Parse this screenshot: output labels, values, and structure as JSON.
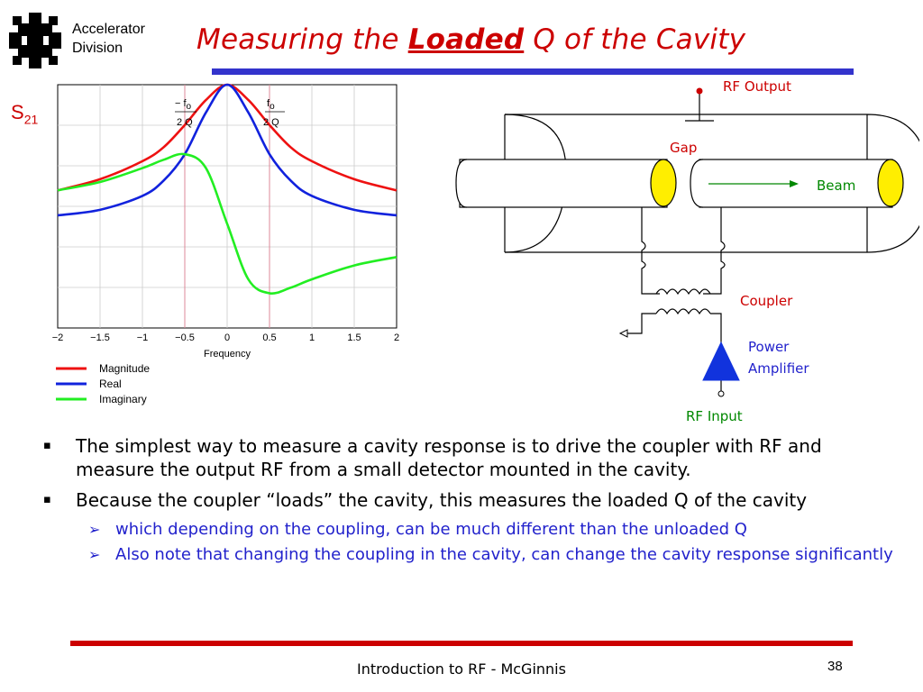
{
  "header": {
    "org_line1": "Accelerator",
    "org_line2": "Division",
    "title_pre": "Measuring the ",
    "title_em": "Loaded",
    "title_post": " Q of the Cavity"
  },
  "s21": {
    "base": "S",
    "sub": "21"
  },
  "chart_data": {
    "type": "line",
    "xlabel": "Frequency",
    "ylabel": "",
    "xlim": [
      -2,
      2
    ],
    "ylim": [
      -0.75,
      1.0
    ],
    "x_ticks": [
      "−2",
      "−1.5",
      "−1",
      "−0.5",
      "0",
      "0.5",
      "1",
      "1.5",
      "2"
    ],
    "grid": true,
    "legend_position": "bottom-left",
    "annotations": [
      {
        "num": "− f",
        "num_sub": "o",
        "den": "2 Q"
      },
      {
        "num": "f",
        "num_sub": "o",
        "den": "2 Q"
      }
    ],
    "series": [
      {
        "name": "Magnitude",
        "color": "#ee1111",
        "x": [
          -2,
          -1.5,
          -1,
          -0.75,
          -0.5,
          -0.25,
          0,
          0.25,
          0.5,
          0.75,
          1,
          1.5,
          2
        ],
        "values": [
          0.24,
          0.32,
          0.45,
          0.55,
          0.71,
          0.89,
          1.0,
          0.89,
          0.71,
          0.55,
          0.45,
          0.32,
          0.24
        ]
      },
      {
        "name": "Real",
        "color": "#1122dd",
        "x": [
          -2,
          -1.5,
          -1,
          -0.75,
          -0.5,
          -0.25,
          0,
          0.25,
          0.5,
          0.75,
          1,
          1.5,
          2
        ],
        "values": [
          0.06,
          0.1,
          0.2,
          0.31,
          0.5,
          0.8,
          1.0,
          0.8,
          0.5,
          0.31,
          0.2,
          0.1,
          0.06
        ]
      },
      {
        "name": "Imaginary",
        "color": "#22ee22",
        "x": [
          -2,
          -1.5,
          -1,
          -0.75,
          -0.5,
          -0.25,
          0,
          0.25,
          0.5,
          0.75,
          1,
          1.5,
          2
        ],
        "values": [
          0.24,
          0.3,
          0.4,
          0.46,
          0.5,
          0.4,
          0.0,
          -0.4,
          -0.5,
          -0.46,
          -0.4,
          -0.3,
          -0.24
        ]
      }
    ]
  },
  "schematic": {
    "rf_output": "RF Output",
    "gap": "Gap",
    "beam": "Beam",
    "coupler": "Coupler",
    "power_amp_1": "Power",
    "power_amp_2": "Amplifier",
    "rf_input": "RF Input",
    "colors": {
      "label_red": "#cc0000",
      "label_green": "#008800",
      "label_blue": "#2222cc",
      "tube_end": "#ffee00",
      "amplifier": "#1133dd"
    }
  },
  "bullets": [
    {
      "text": "The simplest way to measure a cavity response is to drive the coupler with RF and measure the output RF from a small detector mounted in the cavity."
    },
    {
      "text": "Because the coupler “loads” the cavity, this measures the loaded Q of the cavity"
    }
  ],
  "sub_bullets": [
    {
      "text": "which depending on the coupling, can be much different than the unloaded Q"
    },
    {
      "text": "Also note that changing the coupling in the cavity, can change the cavity response significantly"
    }
  ],
  "footer": {
    "text": "Introduction to RF - McGinnis",
    "page": "38"
  },
  "markers": {
    "bullet": "▪",
    "sub_bullet": "➢"
  }
}
